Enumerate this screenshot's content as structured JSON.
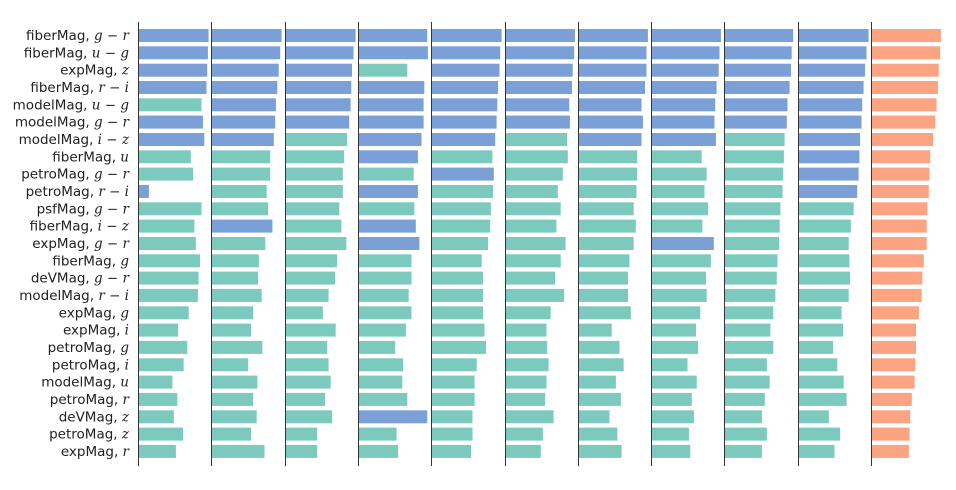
{
  "chart_data": {
    "type": "bar",
    "orientation": "horizontal",
    "layout": "11 side-by-side panels sharing row labels",
    "legend": "none",
    "axes_visible": false,
    "grid": false,
    "colors": {
      "blue": "#7b9fd7",
      "teal": "#7ccabd",
      "orange": "#fca482"
    },
    "row_labels": [
      {
        "name": "fiberMag,",
        "math": "g − r"
      },
      {
        "name": "fiberMag,",
        "math": "u − g"
      },
      {
        "name": "expMag,",
        "math": "z"
      },
      {
        "name": "fiberMag,",
        "math": "r − i"
      },
      {
        "name": "modelMag,",
        "math": "u − g"
      },
      {
        "name": "modelMag,",
        "math": "g − r"
      },
      {
        "name": "modelMag,",
        "math": "i − z"
      },
      {
        "name": "fiberMag,",
        "math": "u"
      },
      {
        "name": "petroMag,",
        "math": "g − r"
      },
      {
        "name": "petroMag,",
        "math": "r − i"
      },
      {
        "name": "psfMag,",
        "math": "g − r"
      },
      {
        "name": "fiberMag,",
        "math": "i − z"
      },
      {
        "name": "expMag,",
        "math": "g − r"
      },
      {
        "name": "fiberMag,",
        "math": "g"
      },
      {
        "name": "deVMag,",
        "math": "g − r"
      },
      {
        "name": "modelMag,",
        "math": "r − i"
      },
      {
        "name": "expMag,",
        "math": "g"
      },
      {
        "name": "expMag,",
        "math": "i"
      },
      {
        "name": "petroMag,",
        "math": "g"
      },
      {
        "name": "petroMag,",
        "math": "i"
      },
      {
        "name": "modelMag,",
        "math": "u"
      },
      {
        "name": "petroMag,",
        "math": "r"
      },
      {
        "name": "deVMag,",
        "math": "z"
      },
      {
        "name": "petroMag,",
        "math": "z"
      },
      {
        "name": "expMag,",
        "math": "r"
      }
    ],
    "panels": [
      {
        "values": [
          0.98,
          0.97,
          0.96,
          0.95,
          0.88,
          0.9,
          0.92,
          0.73,
          0.76,
          0.14,
          0.88,
          0.78,
          0.8,
          0.86,
          0.84,
          0.83,
          0.7,
          0.55,
          0.68,
          0.63,
          0.47,
          0.54,
          0.49,
          0.62,
          0.52
        ],
        "colors": [
          "b",
          "b",
          "b",
          "b",
          "t",
          "b",
          "b",
          "t",
          "t",
          "b",
          "t",
          "t",
          "t",
          "t",
          "t",
          "t",
          "t",
          "t",
          "t",
          "t",
          "t",
          "t",
          "t",
          "t",
          "t"
        ]
      },
      {
        "values": [
          0.98,
          0.96,
          0.94,
          0.92,
          0.9,
          0.89,
          0.87,
          0.82,
          0.82,
          0.77,
          0.79,
          0.85,
          0.75,
          0.66,
          0.65,
          0.7,
          0.58,
          0.55,
          0.71,
          0.51,
          0.64,
          0.58,
          0.63,
          0.55,
          0.74
        ],
        "colors": [
          "b",
          "b",
          "b",
          "b",
          "b",
          "b",
          "b",
          "t",
          "t",
          "t",
          "t",
          "b",
          "t",
          "t",
          "t",
          "t",
          "t",
          "t",
          "t",
          "t",
          "t",
          "t",
          "t",
          "t",
          "t"
        ]
      },
      {
        "values": [
          0.98,
          0.95,
          0.93,
          0.92,
          0.91,
          0.89,
          0.86,
          0.82,
          0.8,
          0.8,
          0.75,
          0.78,
          0.85,
          0.72,
          0.69,
          0.6,
          0.52,
          0.7,
          0.58,
          0.6,
          0.63,
          0.55,
          0.65,
          0.44,
          0.44
        ],
        "colors": [
          "b",
          "b",
          "b",
          "b",
          "b",
          "b",
          "t",
          "t",
          "t",
          "t",
          "t",
          "t",
          "t",
          "t",
          "t",
          "t",
          "t",
          "t",
          "t",
          "t",
          "t",
          "t",
          "t",
          "t",
          "t"
        ]
      },
      {
        "values": [
          0.96,
          0.97,
          0.68,
          0.92,
          0.91,
          0.91,
          0.88,
          0.83,
          0.77,
          0.83,
          0.78,
          0.8,
          0.85,
          0.74,
          0.74,
          0.7,
          0.74,
          0.66,
          0.51,
          0.62,
          0.61,
          0.68,
          0.96,
          0.53,
          0.55
        ],
        "colors": [
          "b",
          "b",
          "t",
          "b",
          "b",
          "b",
          "b",
          "b",
          "t",
          "b",
          "t",
          "b",
          "b",
          "t",
          "t",
          "t",
          "t",
          "t",
          "t",
          "t",
          "t",
          "t",
          "b",
          "t",
          "t"
        ]
      },
      {
        "values": [
          0.98,
          0.96,
          0.95,
          0.93,
          0.92,
          0.91,
          0.89,
          0.85,
          0.87,
          0.86,
          0.83,
          0.82,
          0.79,
          0.7,
          0.72,
          0.72,
          0.72,
          0.74,
          0.76,
          0.63,
          0.6,
          0.6,
          0.57,
          0.57,
          0.55
        ],
        "colors": [
          "b",
          "b",
          "b",
          "b",
          "b",
          "b",
          "b",
          "t",
          "b",
          "t",
          "t",
          "t",
          "t",
          "t",
          "t",
          "t",
          "t",
          "t",
          "t",
          "t",
          "t",
          "t",
          "t",
          "t",
          "t"
        ]
      },
      {
        "values": [
          0.97,
          0.96,
          0.94,
          0.93,
          0.89,
          0.9,
          0.86,
          0.87,
          0.8,
          0.73,
          0.77,
          0.71,
          0.84,
          0.77,
          0.69,
          0.82,
          0.63,
          0.57,
          0.58,
          0.6,
          0.57,
          0.55,
          0.67,
          0.52,
          0.49
        ],
        "colors": [
          "b",
          "b",
          "b",
          "b",
          "b",
          "b",
          "t",
          "t",
          "t",
          "t",
          "t",
          "t",
          "t",
          "t",
          "t",
          "t",
          "t",
          "t",
          "t",
          "t",
          "t",
          "t",
          "t",
          "t",
          "t"
        ]
      },
      {
        "values": [
          0.97,
          0.95,
          0.95,
          0.93,
          0.88,
          0.9,
          0.88,
          0.82,
          0.82,
          0.81,
          0.77,
          0.8,
          0.77,
          0.71,
          0.69,
          0.69,
          0.73,
          0.46,
          0.57,
          0.63,
          0.52,
          0.59,
          0.43,
          0.54,
          0.6
        ],
        "colors": [
          "b",
          "b",
          "b",
          "b",
          "b",
          "b",
          "b",
          "t",
          "t",
          "t",
          "t",
          "t",
          "t",
          "t",
          "t",
          "t",
          "t",
          "t",
          "t",
          "t",
          "t",
          "t",
          "t",
          "t",
          "t"
        ]
      },
      {
        "values": [
          0.97,
          0.95,
          0.94,
          0.91,
          0.89,
          0.88,
          0.9,
          0.7,
          0.77,
          0.74,
          0.79,
          0.71,
          0.87,
          0.83,
          0.76,
          0.77,
          0.68,
          0.62,
          0.65,
          0.5,
          0.63,
          0.56,
          0.59,
          0.52,
          0.54
        ],
        "colors": [
          "b",
          "b",
          "b",
          "b",
          "b",
          "b",
          "b",
          "t",
          "t",
          "t",
          "t",
          "t",
          "b",
          "t",
          "t",
          "t",
          "t",
          "t",
          "t",
          "t",
          "t",
          "t",
          "t",
          "t",
          "t"
        ]
      },
      {
        "values": [
          0.96,
          0.94,
          0.93,
          0.91,
          0.88,
          0.87,
          0.84,
          0.83,
          0.82,
          0.81,
          0.78,
          0.77,
          0.76,
          0.74,
          0.73,
          0.71,
          0.68,
          0.64,
          0.68,
          0.59,
          0.63,
          0.56,
          0.52,
          0.59,
          0.52
        ],
        "colors": [
          "b",
          "b",
          "b",
          "b",
          "b",
          "b",
          "t",
          "t",
          "t",
          "t",
          "t",
          "t",
          "t",
          "t",
          "t",
          "t",
          "t",
          "t",
          "t",
          "t",
          "t",
          "t",
          "t",
          "t",
          "t"
        ]
      },
      {
        "values": [
          0.98,
          0.95,
          0.93,
          0.91,
          0.89,
          0.88,
          0.86,
          0.85,
          0.84,
          0.82,
          0.77,
          0.73,
          0.7,
          0.71,
          0.72,
          0.7,
          0.6,
          0.62,
          0.48,
          0.54,
          0.63,
          0.67,
          0.42,
          0.58,
          0.5
        ],
        "colors": [
          "b",
          "b",
          "b",
          "b",
          "b",
          "b",
          "b",
          "b",
          "b",
          "b",
          "t",
          "t",
          "t",
          "t",
          "t",
          "t",
          "t",
          "t",
          "t",
          "t",
          "t",
          "t",
          "t",
          "t",
          "t"
        ]
      },
      {
        "values": [
          0.97,
          0.96,
          0.94,
          0.93,
          0.91,
          0.89,
          0.86,
          0.82,
          0.81,
          0.8,
          0.78,
          0.77,
          0.77,
          0.73,
          0.71,
          0.7,
          0.66,
          0.62,
          0.62,
          0.61,
          0.6,
          0.56,
          0.54,
          0.53,
          0.52
        ],
        "colors": [
          "o",
          "o",
          "o",
          "o",
          "o",
          "o",
          "o",
          "o",
          "o",
          "o",
          "o",
          "o",
          "o",
          "o",
          "o",
          "o",
          "o",
          "o",
          "o",
          "o",
          "o",
          "o",
          "o",
          "o",
          "o"
        ]
      }
    ]
  }
}
